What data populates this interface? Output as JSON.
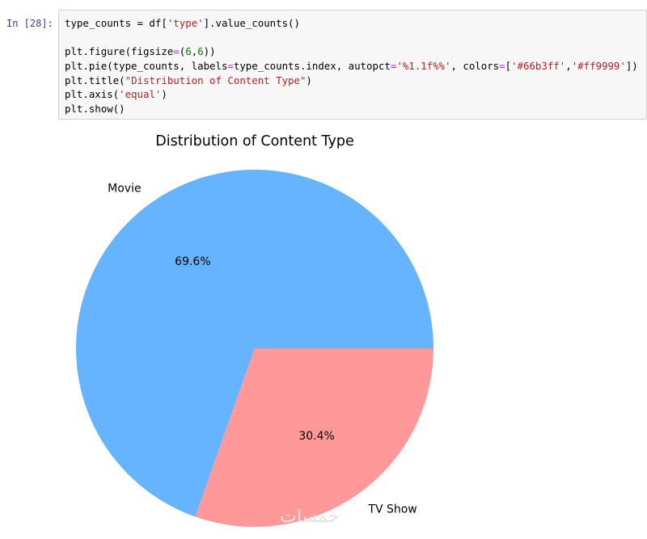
{
  "cell": {
    "prompt": "In [28]:",
    "code_lines": [
      [
        {
          "t": "type_counts = df["
        },
        {
          "t": "'type'",
          "c": "s"
        },
        {
          "t": "].value_counts()"
        }
      ],
      [
        {
          "t": ""
        }
      ],
      [
        {
          "t": "plt.figure(figsize"
        },
        {
          "t": "=",
          "c": "o"
        },
        {
          "t": "("
        },
        {
          "t": "6",
          "c": "n"
        },
        {
          "t": ","
        },
        {
          "t": "6",
          "c": "n"
        },
        {
          "t": "))"
        }
      ],
      [
        {
          "t": "plt.pie(type_counts, labels"
        },
        {
          "t": "=",
          "c": "o"
        },
        {
          "t": "type_counts.index, autopct"
        },
        {
          "t": "=",
          "c": "o"
        },
        {
          "t": "'%1.1f%%'",
          "c": "s"
        },
        {
          "t": ", colors"
        },
        {
          "t": "=",
          "c": "o"
        },
        {
          "t": "["
        },
        {
          "t": "'#66b3ff'",
          "c": "s"
        },
        {
          "t": ","
        },
        {
          "t": "'#ff9999'",
          "c": "s"
        },
        {
          "t": "])"
        }
      ],
      [
        {
          "t": "plt.title("
        },
        {
          "t": "\"Distribution of Content Type\"",
          "c": "s"
        },
        {
          "t": ")"
        }
      ],
      [
        {
          "t": "plt.axis("
        },
        {
          "t": "'equal'",
          "c": "s"
        },
        {
          "t": ")"
        }
      ],
      [
        {
          "t": "plt.show()"
        }
      ]
    ]
  },
  "chart_data": {
    "type": "pie",
    "title": "Distribution of Content Type",
    "slices": [
      {
        "label": "Movie",
        "value": 69.6,
        "pct_label": "69.6%",
        "color": "#66b3ff"
      },
      {
        "label": "TV Show",
        "value": 30.4,
        "pct_label": "30.4%",
        "color": "#ff9999"
      }
    ]
  },
  "watermark": "خمسات"
}
